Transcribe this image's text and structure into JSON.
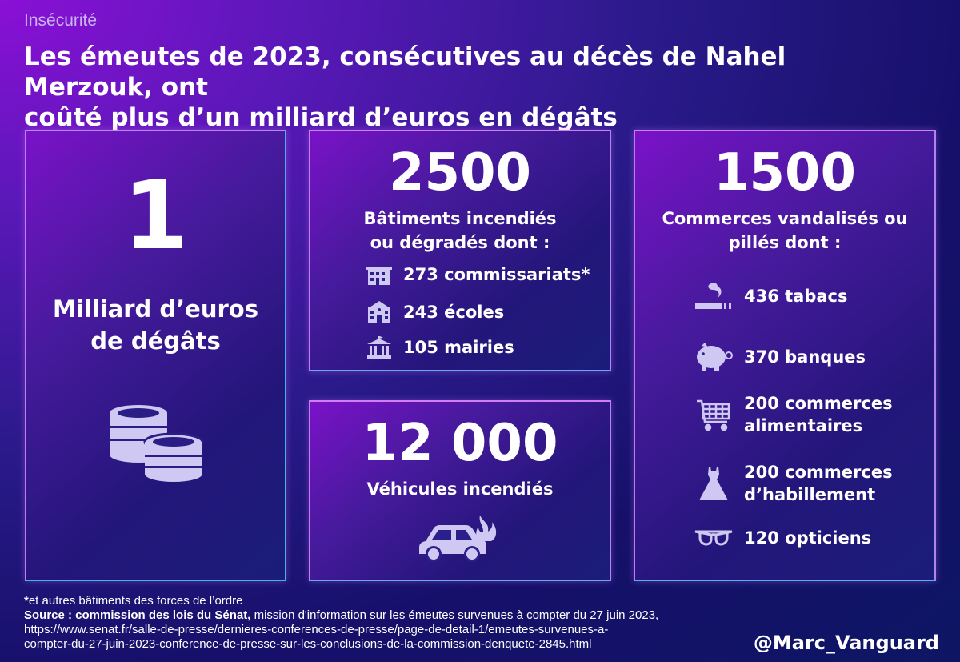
{
  "category": "Insécurité",
  "headline": {
    "line1": "Les émeutes de 2023, consécutives au décès de Nahel Merzouk, ont",
    "line2": "coûté plus d’un milliard d’euros en dégâts"
  },
  "cost_card": {
    "number": "1",
    "label_line1": "Milliard d’euros",
    "label_line2": "de dégâts",
    "icon": "coins-icon"
  },
  "buildings_card": {
    "number": "2500",
    "label_line1": "Bâtiments incendiés",
    "label_line2": "ou dégradés dont :",
    "items": [
      {
        "icon": "police-station-icon",
        "label": "273 commissariats*"
      },
      {
        "icon": "school-icon",
        "label": "243 écoles"
      },
      {
        "icon": "town-hall-icon",
        "label": "105 mairies"
      }
    ]
  },
  "vehicles_card": {
    "number": "12 000",
    "label": "Véhicules incendiés",
    "icon": "burning-car-icon"
  },
  "shops_card": {
    "number": "1500",
    "label_line1": "Commerces vandalisés ou",
    "label_line2": "pillés dont :",
    "items": [
      {
        "icon": "cigarette-icon",
        "label_line1": "436 tabacs",
        "label_line2": ""
      },
      {
        "icon": "piggy-bank-icon",
        "label_line1": "370 banques",
        "label_line2": ""
      },
      {
        "icon": "shopping-cart-icon",
        "label_line1": "200 commerces",
        "label_line2": "alimentaires"
      },
      {
        "icon": "dress-icon",
        "label_line1": "200 commerces",
        "label_line2": "d’habillement"
      },
      {
        "icon": "glasses-icon",
        "label_line1": "120 opticiens",
        "label_line2": ""
      }
    ]
  },
  "footnote": {
    "asterisk": "*",
    "note": "et autres bâtiments des forces de l’ordre",
    "source_label": "Source : commission des lois du Sénat,",
    "source_text": " mission d'information sur les émeutes survenues à compter du 27 juin 2023,",
    "url_line1": "https://www.senat.fr/salle-de-presse/dernieres-conferences-de-presse/page-de-detail-1/emeutes-survenues-a-",
    "url_line2": "compter-du-27-juin-2023-conference-de-presse-sur-les-conclusions-de-la-commission-denquete-2845.html"
  },
  "handle": "@Marc_Vanguard",
  "colors": {
    "icon_fill": "#cfc8f2",
    "card_border": "#cf7bf2",
    "category_text": "#c9b4ee"
  }
}
